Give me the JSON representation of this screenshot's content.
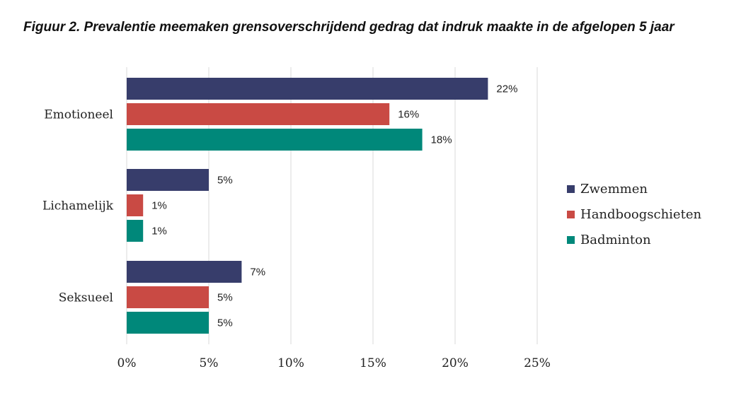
{
  "chart_data": {
    "type": "bar",
    "orientation": "horizontal",
    "title": "Figuur 2. Prevalentie meemaken grensoverschrijdend gedrag dat indruk maakte in de afgelopen 5 jaar",
    "categories": [
      "Emotioneel",
      "Lichamelijk",
      "Seksueel"
    ],
    "series": [
      {
        "name": "Zwemmen",
        "color": "#373d6b",
        "values": [
          22,
          5,
          7
        ]
      },
      {
        "name": "Handboogschieten",
        "color": "#c94a44",
        "values": [
          16,
          1,
          5
        ]
      },
      {
        "name": "Badminton",
        "color": "#00887a",
        "values": [
          18,
          1,
          5
        ]
      }
    ],
    "value_labels": [
      [
        "22%",
        "5%",
        "7%"
      ],
      [
        "16%",
        "1%",
        "5%"
      ],
      [
        "18%",
        "1%",
        "5%"
      ]
    ],
    "xlim": [
      0,
      25
    ],
    "xticks": [
      0,
      5,
      10,
      15,
      20,
      25
    ],
    "xtick_labels": [
      "0%",
      "5%",
      "10%",
      "15%",
      "20%",
      "25%"
    ],
    "grid": true,
    "legend_position": "right"
  }
}
